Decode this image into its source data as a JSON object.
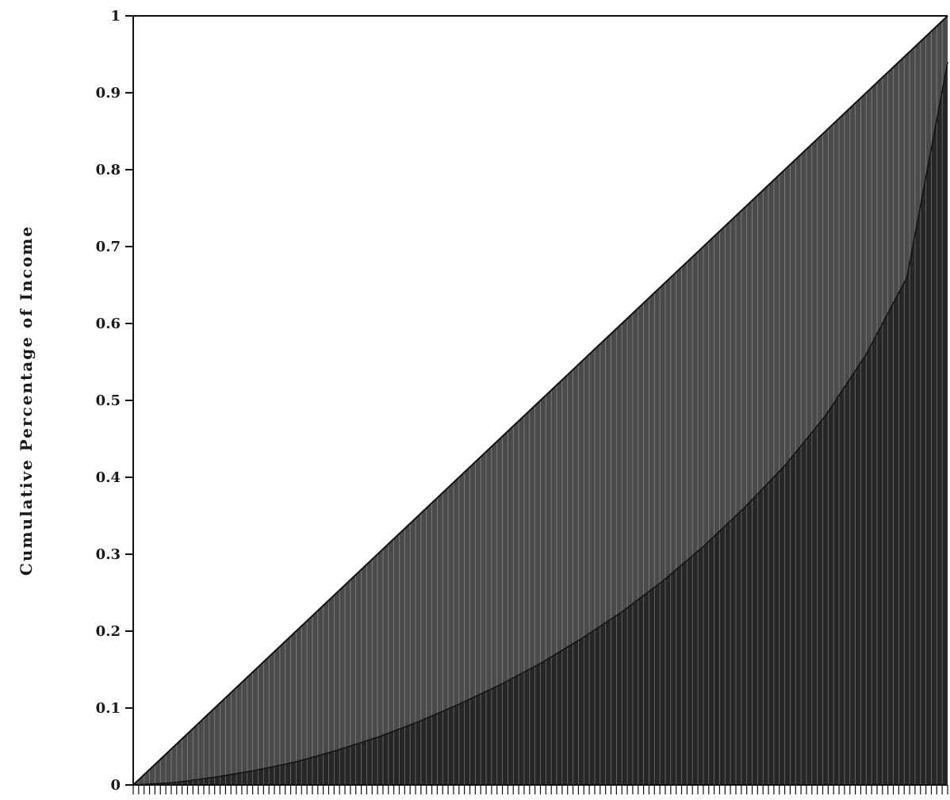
{
  "chart_data": {
    "type": "bar",
    "title": "",
    "xlabel": "",
    "ylabel": "Cumulative Percentage of Income",
    "ylim": [
      0,
      1
    ],
    "yticks": [
      {
        "value": 0,
        "label": "0"
      },
      {
        "value": 0.1,
        "label": "0.1"
      },
      {
        "value": 0.2,
        "label": "0.2"
      },
      {
        "value": 0.3,
        "label": "0.3"
      },
      {
        "value": 0.4,
        "label": "0.4"
      },
      {
        "value": 0.5,
        "label": "0.5"
      },
      {
        "value": 0.6,
        "label": "0.6"
      },
      {
        "value": 0.7,
        "label": "0.7"
      },
      {
        "value": 0.8,
        "label": "0.8"
      },
      {
        "value": 0.9,
        "label": "0.9"
      },
      {
        "value": 1,
        "label": "1"
      }
    ],
    "xlim": [
      0,
      1
    ],
    "grid": false,
    "reference_line": {
      "from": [
        0,
        0
      ],
      "to": [
        1,
        1
      ]
    },
    "lorenz_curve": {
      "x": [
        0,
        0.05,
        0.1,
        0.15,
        0.2,
        0.25,
        0.3,
        0.35,
        0.4,
        0.45,
        0.5,
        0.55,
        0.6,
        0.65,
        0.7,
        0.75,
        0.8,
        0.85,
        0.9,
        0.95,
        1
      ],
      "y": [
        0,
        0.003,
        0.01,
        0.019,
        0.03,
        0.045,
        0.062,
        0.082,
        0.105,
        0.13,
        0.158,
        0.19,
        0.225,
        0.265,
        0.31,
        0.36,
        0.415,
        0.48,
        0.56,
        0.66,
        0.94
      ]
    },
    "colors": {
      "line": "#111111",
      "fill_upper": "#4a4a4a",
      "fill_lower": "#262626",
      "bar_separator": "#cfcfcf"
    }
  }
}
